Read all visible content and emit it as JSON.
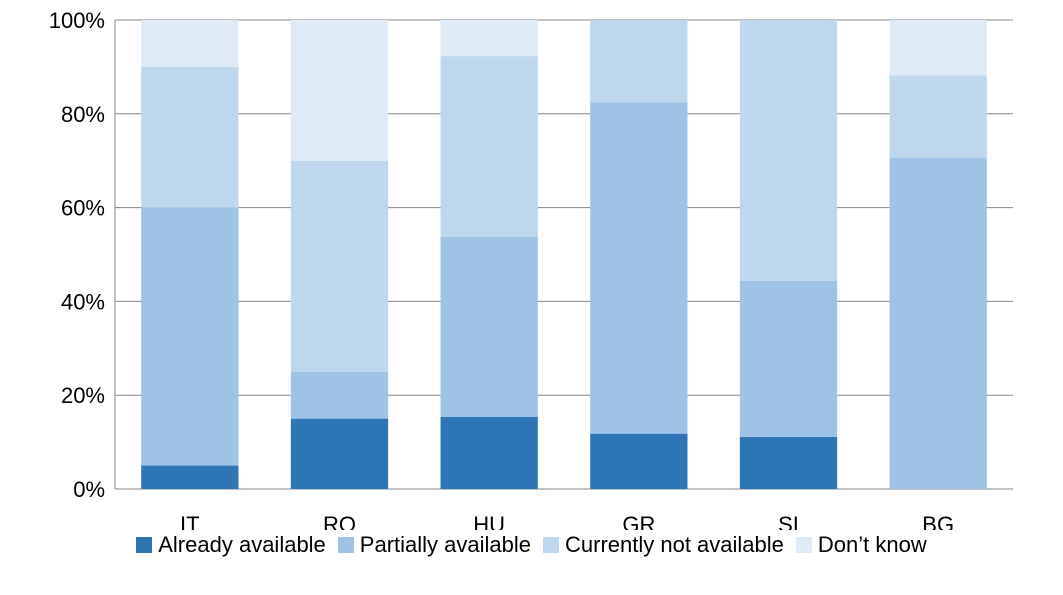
{
  "chart_data": {
    "type": "bar",
    "stacked": true,
    "percent": true,
    "categories": [
      "IT",
      "RO",
      "HU",
      "GR",
      "SI",
      "BG"
    ],
    "series": [
      {
        "name": "Already available",
        "color": "#2e75b6",
        "values": [
          5,
          15,
          15.4,
          11.8,
          11.1,
          0
        ]
      },
      {
        "name": "Partially available",
        "color": "#9dc3e6",
        "values": [
          55,
          10,
          38.4,
          70.6,
          33.3,
          70.6
        ]
      },
      {
        "name": "Currently not available",
        "color": "#bdd7ee",
        "values": [
          30,
          45,
          38.5,
          17.6,
          55.6,
          17.6
        ]
      },
      {
        "name": "Don’t know",
        "color": "#deebf7",
        "values": [
          10,
          30,
          7.7,
          0,
          0,
          11.8
        ]
      }
    ],
    "yticks": [
      "0%",
      "20%",
      "40%",
      "60%",
      "80%",
      "100%"
    ],
    "ylim": [
      0,
      100
    ],
    "grid": true,
    "legend_position": "bottom"
  }
}
